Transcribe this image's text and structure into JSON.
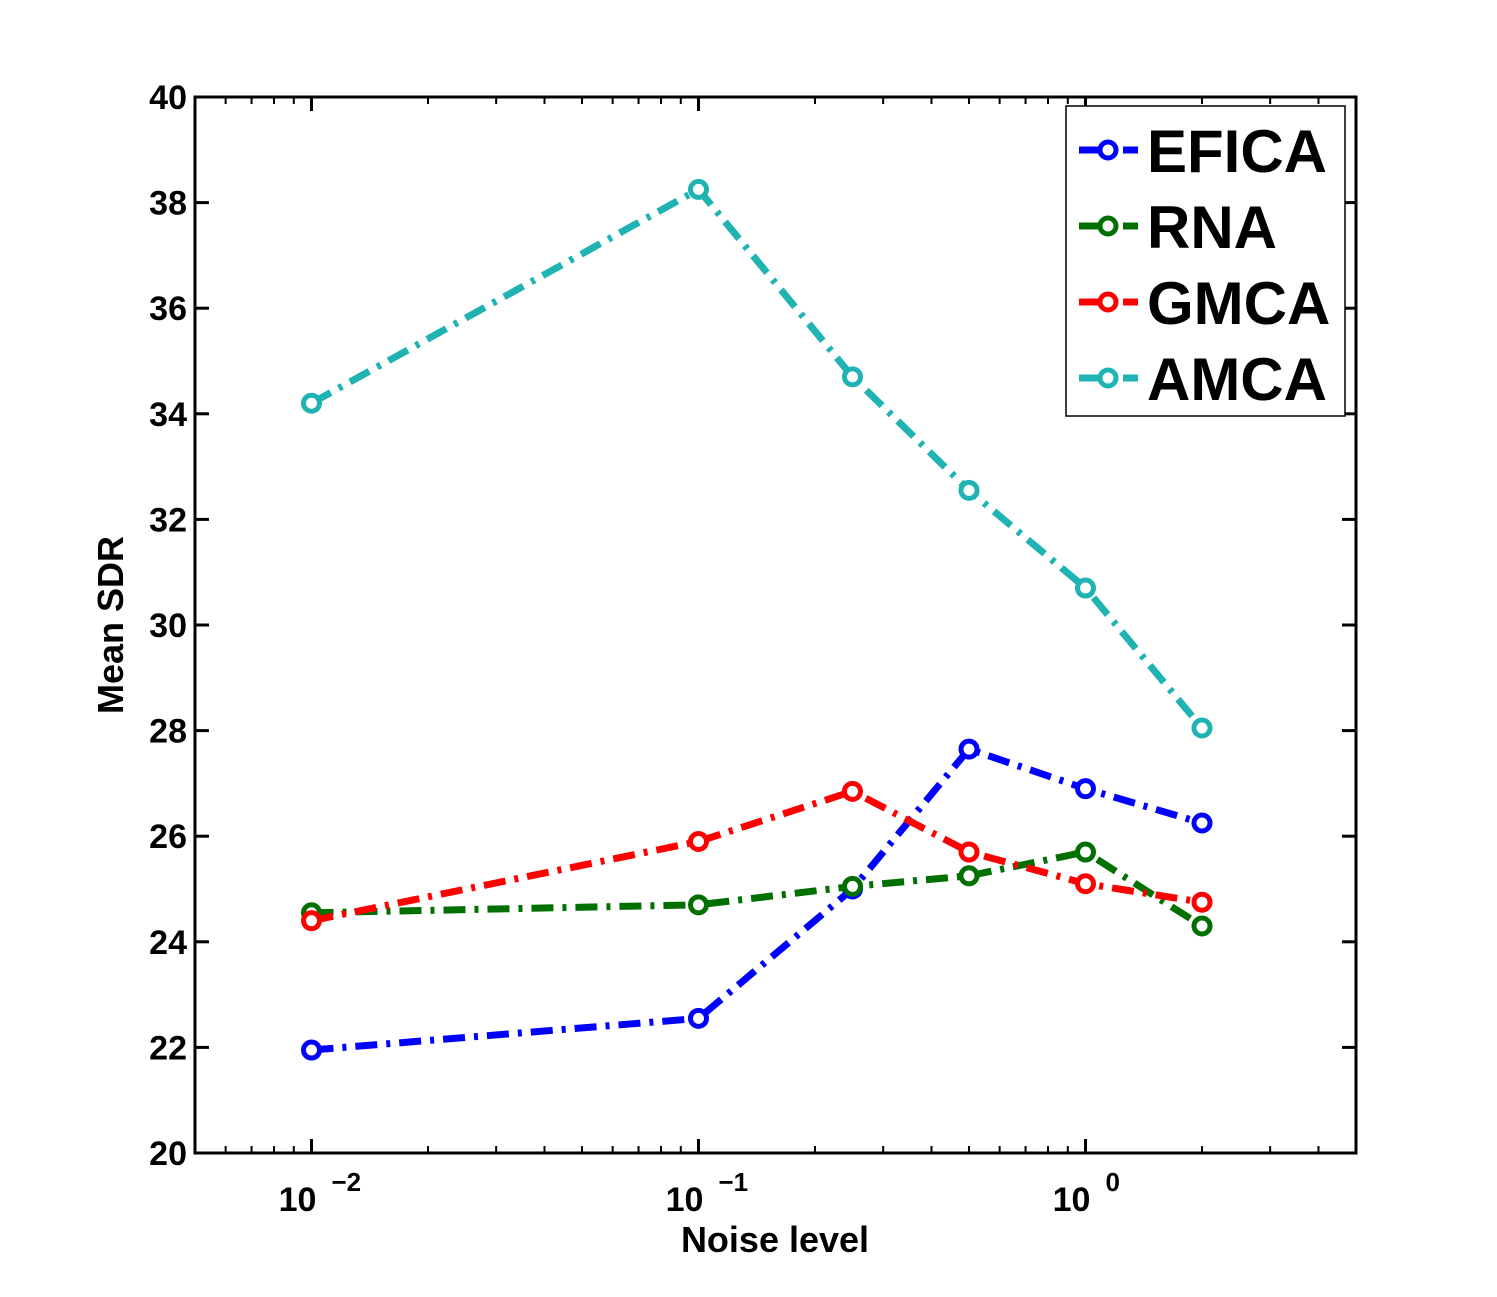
{
  "chart_data": {
    "type": "line",
    "title": "",
    "xlabel": "Noise level",
    "ylabel": "Mean SDR",
    "xscale": "log",
    "xlim": [
      0.005,
      5
    ],
    "ylim": [
      20,
      40
    ],
    "yticks": [
      20,
      22,
      24,
      26,
      28,
      30,
      32,
      34,
      36,
      38,
      40
    ],
    "xticks": [
      {
        "value": 0.01,
        "base": "10",
        "exp": "−2"
      },
      {
        "value": 0.1,
        "base": "10",
        "exp": "−1"
      },
      {
        "value": 1,
        "base": "10",
        "exp": "0"
      }
    ],
    "grid": false,
    "legend_position": "top-right",
    "x": [
      0.01,
      0.1,
      0.25,
      0.5,
      1,
      2
    ],
    "series": [
      {
        "name": "EFICA",
        "color": "#0000ff",
        "values": [
          21.95,
          22.55,
          25.0,
          27.65,
          26.9,
          26.25
        ]
      },
      {
        "name": "RNA",
        "color": "#007000",
        "values": [
          24.55,
          24.7,
          25.05,
          25.25,
          25.7,
          24.3
        ]
      },
      {
        "name": "GMCA",
        "color": "#ff0000",
        "values": [
          24.4,
          25.9,
          26.85,
          25.7,
          25.1,
          24.75
        ]
      },
      {
        "name": "AMCA",
        "color": "#1fb3b3",
        "values": [
          34.2,
          38.25,
          34.7,
          32.55,
          30.7,
          28.05
        ]
      }
    ]
  }
}
